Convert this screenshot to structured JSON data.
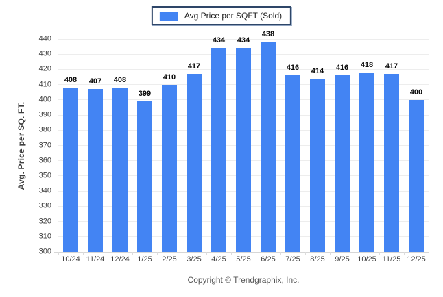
{
  "chart_data": {
    "type": "bar",
    "title": "",
    "series_name": "Avg Price per SQFT (Sold)",
    "categories": [
      "10/24",
      "11/24",
      "12/24",
      "1/25",
      "2/25",
      "3/25",
      "4/25",
      "5/25",
      "6/25",
      "7/25",
      "8/25",
      "9/25",
      "10/25",
      "11/25",
      "12/25"
    ],
    "values": [
      408,
      407,
      408,
      399,
      410,
      417,
      434,
      434,
      438,
      416,
      414,
      416,
      418,
      417,
      400
    ],
    "xlabel": "",
    "ylabel": "Avg. Price per SQ. FT.",
    "ylim": [
      300,
      440
    ],
    "ytick_step": 10,
    "grid": "horizontal",
    "legend_position": "top-center",
    "bar_color": "#4384f3"
  },
  "legend": {
    "label": "Avg Price per SQFT (Sold)",
    "swatch_color": "#4384f3"
  },
  "footer": {
    "copyright": "Copyright © Trendgraphix, Inc."
  }
}
